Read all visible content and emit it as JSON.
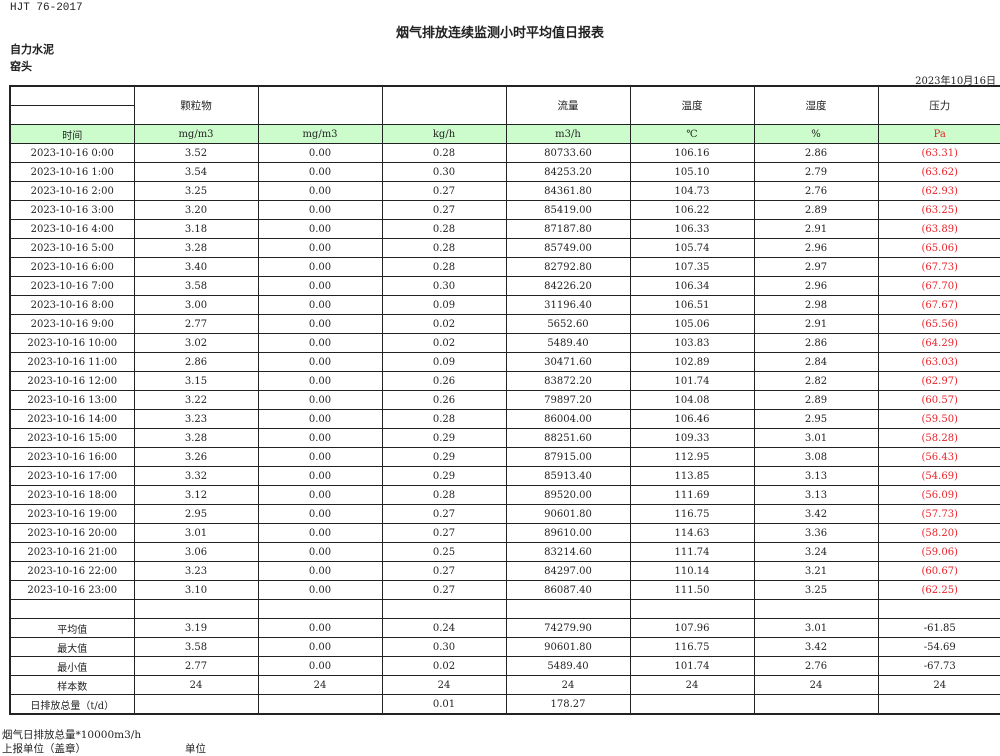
{
  "header": {
    "standard": "HJT  76-2017",
    "title": "烟气排放连续监测小时平均值日报表",
    "company": "自力水泥",
    "unit_name": "窑头",
    "date": "2023年10月16日"
  },
  "columns": [
    "",
    "颗粒物",
    "",
    "",
    "流量",
    "温度",
    "湿度",
    "压力"
  ],
  "units": [
    "时间",
    "mg/m3",
    "mg/m3",
    "kg/h",
    "m3/h",
    "℃",
    "%",
    "Pa"
  ],
  "rows": [
    [
      "2023-10-16 0:00",
      "3.52",
      "0.00",
      "0.28",
      "80733.60",
      "106.16",
      "2.86",
      "(63.31)"
    ],
    [
      "2023-10-16 1:00",
      "3.54",
      "0.00",
      "0.30",
      "84253.20",
      "105.10",
      "2.79",
      "(63.62)"
    ],
    [
      "2023-10-16 2:00",
      "3.25",
      "0.00",
      "0.27",
      "84361.80",
      "104.73",
      "2.76",
      "(62.93)"
    ],
    [
      "2023-10-16 3:00",
      "3.20",
      "0.00",
      "0.27",
      "85419.00",
      "106.22",
      "2.89",
      "(63.25)"
    ],
    [
      "2023-10-16 4:00",
      "3.18",
      "0.00",
      "0.28",
      "87187.80",
      "106.33",
      "2.91",
      "(63.89)"
    ],
    [
      "2023-10-16 5:00",
      "3.28",
      "0.00",
      "0.28",
      "85749.00",
      "105.74",
      "2.96",
      "(65.06)"
    ],
    [
      "2023-10-16 6:00",
      "3.40",
      "0.00",
      "0.28",
      "82792.80",
      "107.35",
      "2.97",
      "(67.73)"
    ],
    [
      "2023-10-16 7:00",
      "3.58",
      "0.00",
      "0.30",
      "84226.20",
      "106.34",
      "2.96",
      "(67.70)"
    ],
    [
      "2023-10-16 8:00",
      "3.00",
      "0.00",
      "0.09",
      "31196.40",
      "106.51",
      "2.98",
      "(67.67)"
    ],
    [
      "2023-10-16 9:00",
      "2.77",
      "0.00",
      "0.02",
      "5652.60",
      "105.06",
      "2.91",
      "(65.56)"
    ],
    [
      "2023-10-16 10:00",
      "3.02",
      "0.00",
      "0.02",
      "5489.40",
      "103.83",
      "2.86",
      "(64.29)"
    ],
    [
      "2023-10-16 11:00",
      "2.86",
      "0.00",
      "0.09",
      "30471.60",
      "102.89",
      "2.84",
      "(63.03)"
    ],
    [
      "2023-10-16 12:00",
      "3.15",
      "0.00",
      "0.26",
      "83872.20",
      "101.74",
      "2.82",
      "(62.97)"
    ],
    [
      "2023-10-16 13:00",
      "3.22",
      "0.00",
      "0.26",
      "79897.20",
      "104.08",
      "2.89",
      "(60.57)"
    ],
    [
      "2023-10-16 14:00",
      "3.23",
      "0.00",
      "0.28",
      "86004.00",
      "106.46",
      "2.95",
      "(59.50)"
    ],
    [
      "2023-10-16 15:00",
      "3.28",
      "0.00",
      "0.29",
      "88251.60",
      "109.33",
      "3.01",
      "(58.28)"
    ],
    [
      "2023-10-16 16:00",
      "3.26",
      "0.00",
      "0.29",
      "87915.00",
      "112.95",
      "3.08",
      "(56.43)"
    ],
    [
      "2023-10-16 17:00",
      "3.32",
      "0.00",
      "0.29",
      "85913.40",
      "113.85",
      "3.13",
      "(54.69)"
    ],
    [
      "2023-10-16 18:00",
      "3.12",
      "0.00",
      "0.28",
      "89520.00",
      "111.69",
      "3.13",
      "(56.09)"
    ],
    [
      "2023-10-16 19:00",
      "2.95",
      "0.00",
      "0.27",
      "90601.80",
      "116.75",
      "3.42",
      "(57.73)"
    ],
    [
      "2023-10-16 20:00",
      "3.01",
      "0.00",
      "0.27",
      "89610.00",
      "114.63",
      "3.36",
      "(58.20)"
    ],
    [
      "2023-10-16 21:00",
      "3.06",
      "0.00",
      "0.25",
      "83214.60",
      "111.74",
      "3.24",
      "(59.06)"
    ],
    [
      "2023-10-16 22:00",
      "3.23",
      "0.00",
      "0.27",
      "84297.00",
      "110.14",
      "3.21",
      "(60.67)"
    ],
    [
      "2023-10-16 23:00",
      "3.10",
      "0.00",
      "0.27",
      "86087.40",
      "111.50",
      "3.25",
      "(62.25)"
    ]
  ],
  "summary": [
    [
      "平均值",
      "3.19",
      "0.00",
      "0.24",
      "74279.90",
      "107.96",
      "3.01",
      "-61.85"
    ],
    [
      "最大值",
      "3.58",
      "0.00",
      "0.30",
      "90601.80",
      "116.75",
      "3.42",
      "-54.69"
    ],
    [
      "最小值",
      "2.77",
      "0.00",
      "0.02",
      "5489.40",
      "101.74",
      "2.76",
      "-67.73"
    ],
    [
      "样本数",
      "24",
      "24",
      "24",
      "24",
      "24",
      "24",
      "24"
    ],
    [
      "日排放总量（t/d）",
      "",
      "",
      "0.01",
      "178.27",
      "",
      "",
      ""
    ]
  ],
  "footer": {
    "note": "烟气日排放总量*10000m3/h",
    "reporter_label": "上报单位（盖章）",
    "unit_label": "单位"
  },
  "colors": {
    "unit_row_bg": "#ccfccc",
    "negative_pressure": "#e8232a"
  }
}
